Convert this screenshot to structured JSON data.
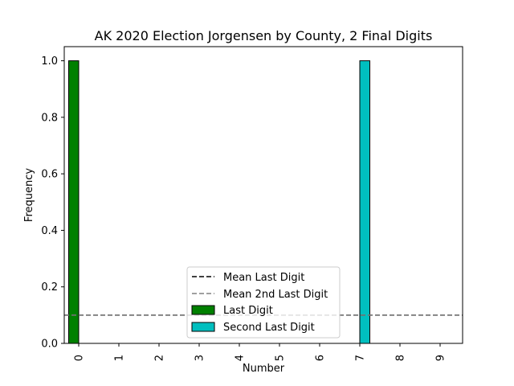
{
  "chart_data": {
    "type": "bar",
    "title": "AK 2020 Election Jorgensen by County, 2 Final Digits",
    "xlabel": "Number",
    "ylabel": "Frequency",
    "categories": [
      "0",
      "1",
      "2",
      "3",
      "4",
      "5",
      "6",
      "7",
      "8",
      "9"
    ],
    "ylim": [
      0,
      1.05
    ],
    "yticks": [
      "0.0",
      "0.2",
      "0.4",
      "0.6",
      "0.8",
      "1.0"
    ],
    "series": [
      {
        "name": "Last Digit",
        "color": "#008000",
        "values": [
          1,
          0,
          0,
          0,
          0,
          0,
          0,
          0,
          0,
          0
        ]
      },
      {
        "name": "Second Last Digit",
        "color": "#00bfbf",
        "values": [
          0,
          0,
          0,
          0,
          0,
          0,
          0,
          1,
          0,
          0
        ]
      }
    ],
    "reference_lines": [
      {
        "name": "Mean Last Digit",
        "value": 0.1,
        "color": "#000000",
        "style": "dashed"
      },
      {
        "name": "Mean 2nd Last Digit",
        "value": 0.1,
        "color": "#808080",
        "style": "dashed"
      }
    ],
    "legend": {
      "placement": "lower-center",
      "entries": [
        "Mean Last Digit",
        "Mean 2nd Last Digit",
        "Last Digit",
        "Second Last Digit"
      ]
    },
    "grid": false
  }
}
